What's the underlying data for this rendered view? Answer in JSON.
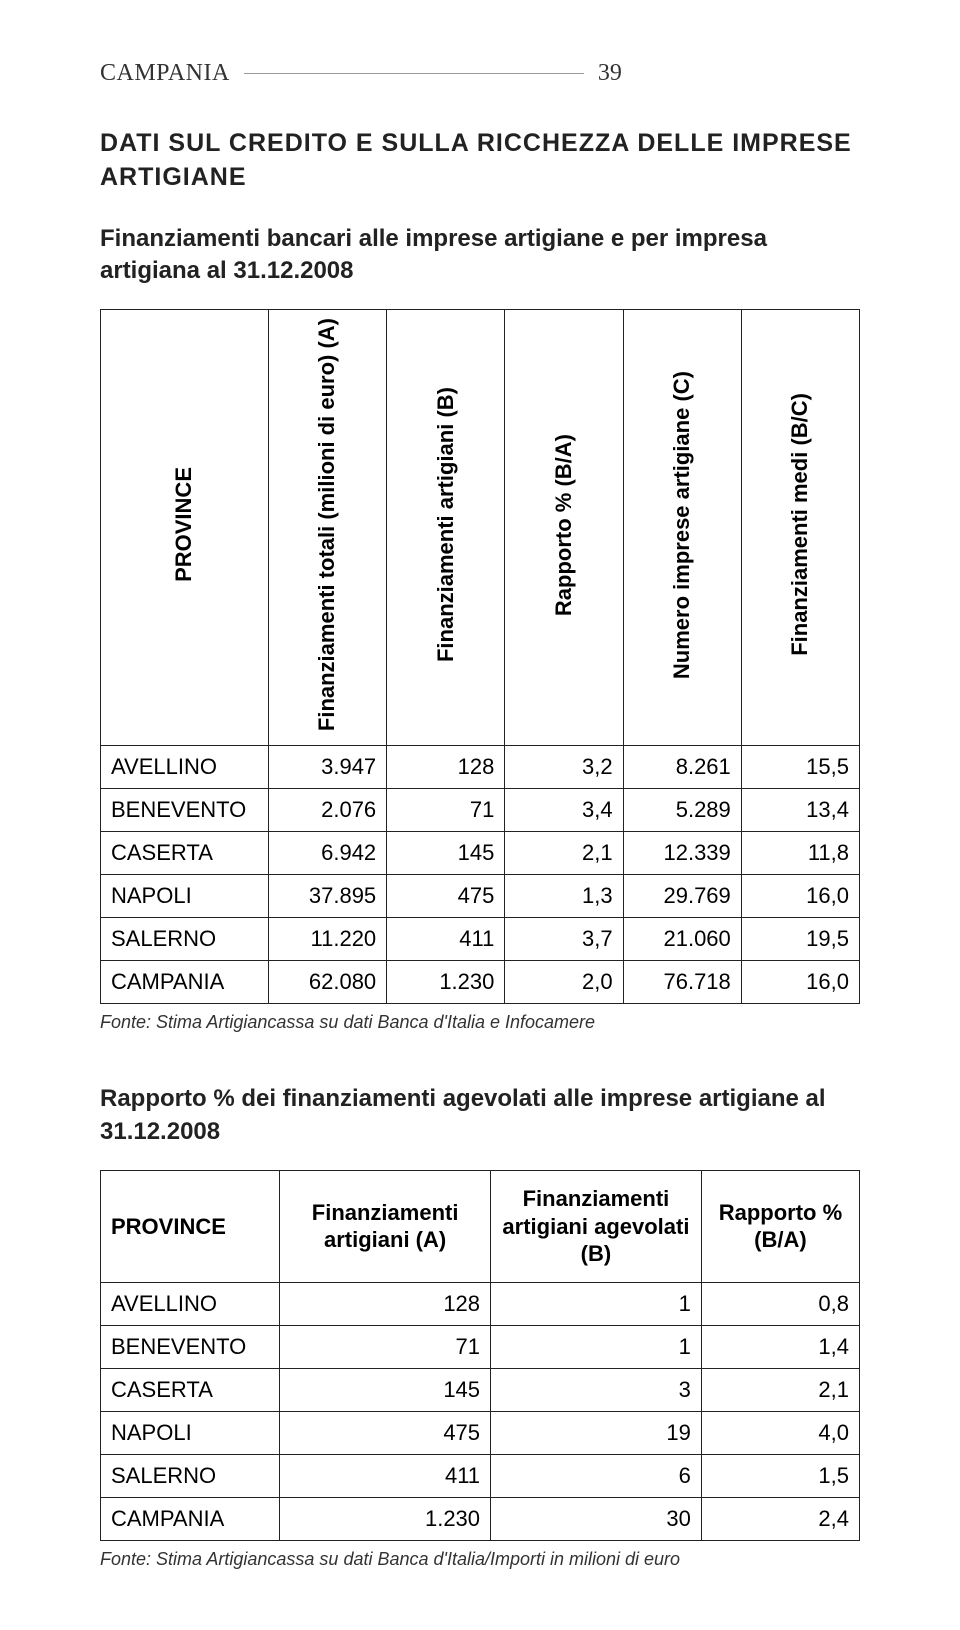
{
  "header": {
    "region": "CAMPANIA",
    "page_number": "39"
  },
  "section_title": "DATI SUL CREDITO E SULLA RICCHEZZA DELLE IMPRESE ARTIGIANE",
  "table1": {
    "title": "Finanziamenti bancari alle imprese artigiane e per impresa artigiana al 31.12.2008",
    "columns": {
      "c0": "PROVINCE",
      "c1": "Finanziamenti totali\n(milioni di euro) (A)",
      "c2": "Finanziamenti\nartigiani (B)",
      "c3": "Rapporto % (B/A)",
      "c4": "Numero imprese\nartigiane (C)",
      "c5": "Finanziamenti\nmedi (B/C)"
    },
    "rows": [
      {
        "label": "AVELLINO",
        "a": "3.947",
        "b": "128",
        "c": "3,2",
        "d": "8.261",
        "e": "15,5"
      },
      {
        "label": "BENEVENTO",
        "a": "2.076",
        "b": "71",
        "c": "3,4",
        "d": "5.289",
        "e": "13,4"
      },
      {
        "label": "CASERTA",
        "a": "6.942",
        "b": "145",
        "c": "2,1",
        "d": "12.339",
        "e": "11,8"
      },
      {
        "label": "NAPOLI",
        "a": "37.895",
        "b": "475",
        "c": "1,3",
        "d": "29.769",
        "e": "16,0"
      },
      {
        "label": "SALERNO",
        "a": "11.220",
        "b": "411",
        "c": "3,7",
        "d": "21.060",
        "e": "19,5"
      },
      {
        "label": "CAMPANIA",
        "a": "62.080",
        "b": "1.230",
        "c": "2,0",
        "d": "76.718",
        "e": "16,0"
      }
    ],
    "source": "Fonte: Stima Artigiancassa su dati Banca d'Italia e Infocamere"
  },
  "table2": {
    "title": "Rapporto % dei finanziamenti agevolati alle imprese artigiane al 31.12.2008",
    "columns": {
      "c0": "PROVINCE",
      "c1": "Finanziamenti artigiani (A)",
      "c2": "Finanziamenti artigiani agevolati (B)",
      "c3": "Rapporto % (B/A)"
    },
    "rows": [
      {
        "label": "AVELLINO",
        "a": "128",
        "b": "1",
        "c": "0,8"
      },
      {
        "label": "BENEVENTO",
        "a": "71",
        "b": "1",
        "c": "1,4"
      },
      {
        "label": "CASERTA",
        "a": "145",
        "b": "3",
        "c": "2,1"
      },
      {
        "label": "NAPOLI",
        "a": "475",
        "b": "19",
        "c": "4,0"
      },
      {
        "label": "SALERNO",
        "a": "411",
        "b": "6",
        "c": "1,5"
      },
      {
        "label": "CAMPANIA",
        "a": "1.230",
        "b": "30",
        "c": "2,4"
      }
    ],
    "source": "Fonte: Stima Artigiancassa su dati Banca d'Italia/Importi in milioni di euro"
  },
  "style": {
    "page_bg": "#ffffff",
    "body_bg": "#f5f5f0",
    "text_color": "#222222",
    "border_color": "#222222",
    "header_line_color": "#999999",
    "title_font_size": 25,
    "subtitle_font_size": 24,
    "cell_font_size": 22,
    "source_font_size": 18
  }
}
